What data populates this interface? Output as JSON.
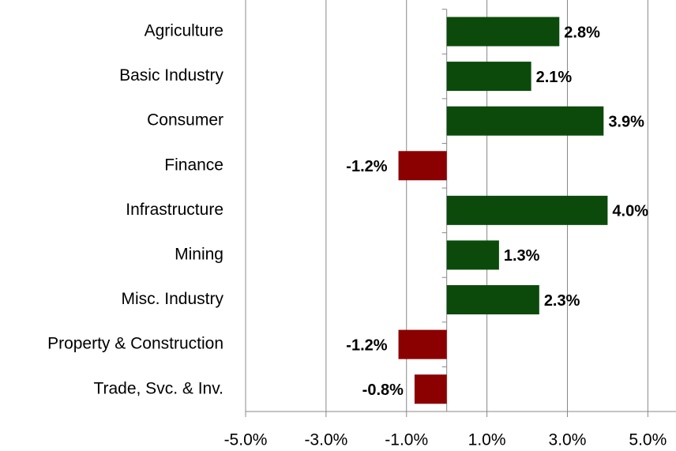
{
  "chart_data": {
    "type": "barh",
    "categories": [
      "Agriculture",
      "Basic Industry",
      "Consumer",
      "Finance",
      "Infrastructure",
      "Mining",
      "Misc. Industry",
      "Property & Construction",
      "Trade, Svc. & Inv."
    ],
    "values": [
      2.8,
      2.1,
      3.9,
      -1.2,
      4.0,
      1.3,
      2.3,
      -1.2,
      -0.8
    ],
    "value_labels": [
      "2.8%",
      "2.1%",
      "3.9%",
      "-1.2%",
      "4.0%",
      "1.3%",
      "2.3%",
      "-1.2%",
      "-0.8%"
    ],
    "positive_color": "#0b4a0b",
    "negative_color": "#8b0000",
    "xlim": [
      -5,
      5.7
    ],
    "xticks": [
      {
        "value": -5,
        "label": "-5.0%"
      },
      {
        "value": -3,
        "label": "-3.0%"
      },
      {
        "value": -1,
        "label": "-1.0%"
      },
      {
        "value": 1,
        "label": "1.0%"
      },
      {
        "value": 3,
        "label": "3.0%"
      },
      {
        "value": 5,
        "label": "5.0%"
      }
    ],
    "grid": true
  }
}
